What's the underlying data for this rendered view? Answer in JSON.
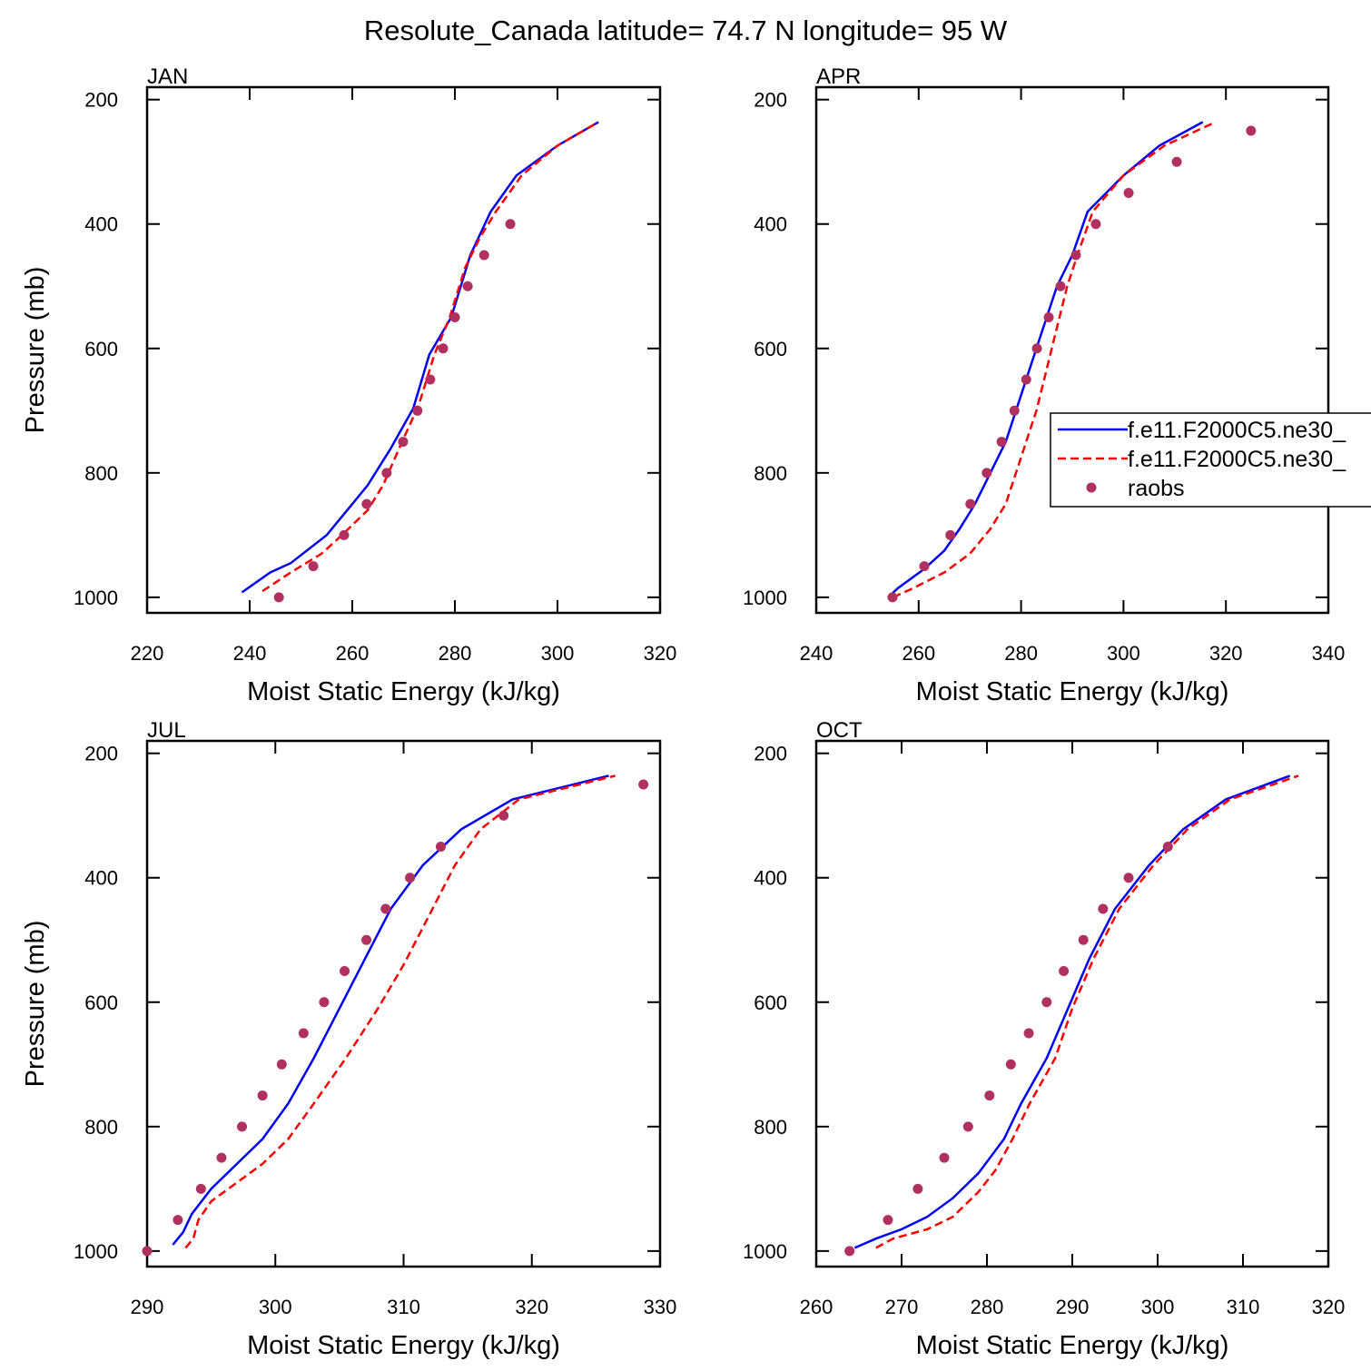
{
  "title": "Resolute_Canada  latitude= 74.7 N longitude= 95 W",
  "chart_data": [
    {
      "type": "line",
      "title": "JAN",
      "xlabel": "Moist Static Energy (kJ/kg)",
      "ylabel": "Pressure (mb)",
      "xlim": [
        220,
        320
      ],
      "xticks": [
        220,
        240,
        260,
        280,
        300,
        320
      ],
      "ylim": [
        180,
        1025
      ],
      "yticks": [
        200,
        400,
        600,
        800,
        1000
      ],
      "yreverse": true,
      "series": [
        {
          "color": "#0000ff",
          "style": "solid",
          "x": [
            238.5,
            244,
            248,
            255,
            259,
            263,
            267.4,
            271.9,
            275,
            279.3,
            283,
            287,
            292,
            300,
            308
          ],
          "y": [
            992,
            960,
            945,
            900,
            860,
            820,
            762,
            696,
            610,
            550,
            450,
            380,
            322,
            274,
            236
          ]
        },
        {
          "color": "#ff0000",
          "style": "dashed",
          "x": [
            242.5,
            248,
            254,
            258,
            263,
            266,
            269,
            273,
            276,
            279,
            282,
            285,
            288,
            293,
            300,
            308
          ],
          "y": [
            990,
            960,
            930,
            900,
            860,
            820,
            763,
            690,
            610,
            550,
            470,
            420,
            380,
            322,
            274,
            236
          ]
        },
        {
          "color": "#b03060",
          "style": "markers",
          "x": [
            245.7,
            252.4,
            258.4,
            262.8,
            266.7,
            269.9,
            272.7,
            275.2,
            277.7,
            280,
            282.5,
            285.7,
            290.8
          ],
          "y": [
            1000,
            950,
            900,
            850,
            800,
            750,
            700,
            650,
            600,
            550,
            500,
            450,
            400
          ]
        }
      ]
    },
    {
      "type": "line",
      "title": "APR",
      "xlabel": "Moist Static Energy (kJ/kg)",
      "xlim": [
        240,
        340
      ],
      "xticks": [
        240,
        260,
        280,
        300,
        320,
        340
      ],
      "ylim": [
        180,
        1025
      ],
      "yticks": [
        200,
        400,
        600,
        800,
        1000
      ],
      "yreverse": true,
      "legend": "right",
      "series": [
        {
          "name": "f.e11.F2000C5.ne30_",
          "color": "#0000ff",
          "style": "solid",
          "x": [
            254,
            256,
            261,
            265,
            268,
            271,
            274,
            277,
            279,
            281,
            283,
            285,
            287,
            290,
            293,
            300,
            307,
            315.5
          ],
          "y": [
            1000,
            985,
            955,
            925,
            890,
            850,
            800,
            750,
            700,
            650,
            600,
            550,
            500,
            450,
            380,
            322,
            274,
            236
          ]
        },
        {
          "name": "f.e11.F2000C5.ne30_",
          "color": "#ff0000",
          "style": "dashed",
          "x": [
            255,
            259,
            265,
            270,
            274,
            277,
            279,
            281,
            283,
            284.5,
            286,
            287.5,
            289,
            291,
            294,
            300,
            308,
            318
          ],
          "y": [
            1000,
            985,
            960,
            930,
            890,
            850,
            800,
            750,
            700,
            650,
            600,
            550,
            500,
            450,
            380,
            322,
            274,
            236
          ]
        },
        {
          "name": "raobs",
          "color": "#b03060",
          "style": "markers",
          "x": [
            254.9,
            261.1,
            266.2,
            270.1,
            273.3,
            276.2,
            278.7,
            281,
            283.1,
            285.4,
            287.7,
            290.7,
            294.6,
            301,
            310.4,
            324.9
          ],
          "y": [
            1000,
            950,
            900,
            850,
            800,
            750,
            700,
            650,
            600,
            550,
            500,
            450,
            400,
            350,
            300,
            250
          ]
        }
      ]
    },
    {
      "type": "line",
      "title": "JUL",
      "xlabel": "Moist Static Energy (kJ/kg)",
      "ylabel": "Pressure (mb)",
      "xlim": [
        290,
        330
      ],
      "xticks": [
        290,
        300,
        310,
        320,
        330
      ],
      "ylim": [
        180,
        1025
      ],
      "yticks": [
        200,
        400,
        600,
        800,
        1000
      ],
      "yreverse": true,
      "series": [
        {
          "color": "#0000ff",
          "style": "solid",
          "x": [
            292,
            292.8,
            293.5,
            295,
            297,
            299,
            301,
            303,
            305,
            307,
            309,
            311.5,
            314.5,
            318.5,
            326
          ],
          "y": [
            990,
            970,
            940,
            900,
            860,
            820,
            763,
            690,
            610,
            530,
            450,
            380,
            322,
            274,
            236
          ]
        },
        {
          "color": "#ff0000",
          "style": "dashed",
          "x": [
            293,
            293.6,
            294,
            295,
            297,
            299,
            301,
            303,
            305.5,
            308,
            310,
            312,
            314,
            316,
            319,
            326.5
          ],
          "y": [
            995,
            980,
            950,
            920,
            890,
            860,
            820,
            763,
            690,
            610,
            540,
            460,
            380,
            322,
            274,
            236
          ]
        },
        {
          "color": "#b03060",
          "style": "markers",
          "x": [
            290,
            292.4,
            294.2,
            295.8,
            297.4,
            299,
            300.5,
            302.2,
            303.8,
            305.4,
            307.1,
            308.6,
            310.5,
            312.9,
            317.8,
            328.7
          ],
          "y": [
            1000,
            950,
            900,
            850,
            800,
            750,
            700,
            650,
            600,
            550,
            500,
            450,
            400,
            350,
            300,
            250
          ]
        }
      ]
    },
    {
      "type": "line",
      "title": "OCT",
      "xlabel": "Moist Static Energy (kJ/kg)",
      "xlim": [
        260,
        320
      ],
      "xticks": [
        260,
        270,
        280,
        290,
        300,
        310,
        320
      ],
      "ylim": [
        180,
        1025
      ],
      "yticks": [
        200,
        400,
        600,
        800,
        1000
      ],
      "yreverse": true,
      "series": [
        {
          "color": "#0000ff",
          "style": "solid",
          "x": [
            264.5,
            267,
            270,
            273,
            276,
            279,
            282,
            284,
            287,
            289.5,
            292,
            295,
            299,
            303,
            308,
            315.5
          ],
          "y": [
            995,
            980,
            965,
            945,
            915,
            875,
            820,
            763,
            690,
            610,
            530,
            450,
            380,
            322,
            274,
            236
          ]
        },
        {
          "color": "#ff0000",
          "style": "dashed",
          "x": [
            267,
            269,
            273,
            276,
            279,
            281,
            283,
            285,
            288,
            290,
            292.5,
            295.5,
            299.5,
            303.5,
            308.5,
            316.5
          ],
          "y": [
            995,
            980,
            965,
            945,
            905,
            870,
            820,
            763,
            690,
            610,
            530,
            450,
            380,
            322,
            274,
            236
          ]
        },
        {
          "color": "#b03060",
          "style": "markers",
          "x": [
            263.9,
            268.4,
            271.9,
            275,
            277.8,
            280.3,
            282.8,
            284.9,
            287,
            289,
            291.3,
            293.6,
            296.6,
            301.2
          ],
          "y": [
            1000,
            950,
            900,
            850,
            800,
            750,
            700,
            650,
            600,
            550,
            500,
            450,
            400,
            350
          ]
        }
      ]
    }
  ]
}
